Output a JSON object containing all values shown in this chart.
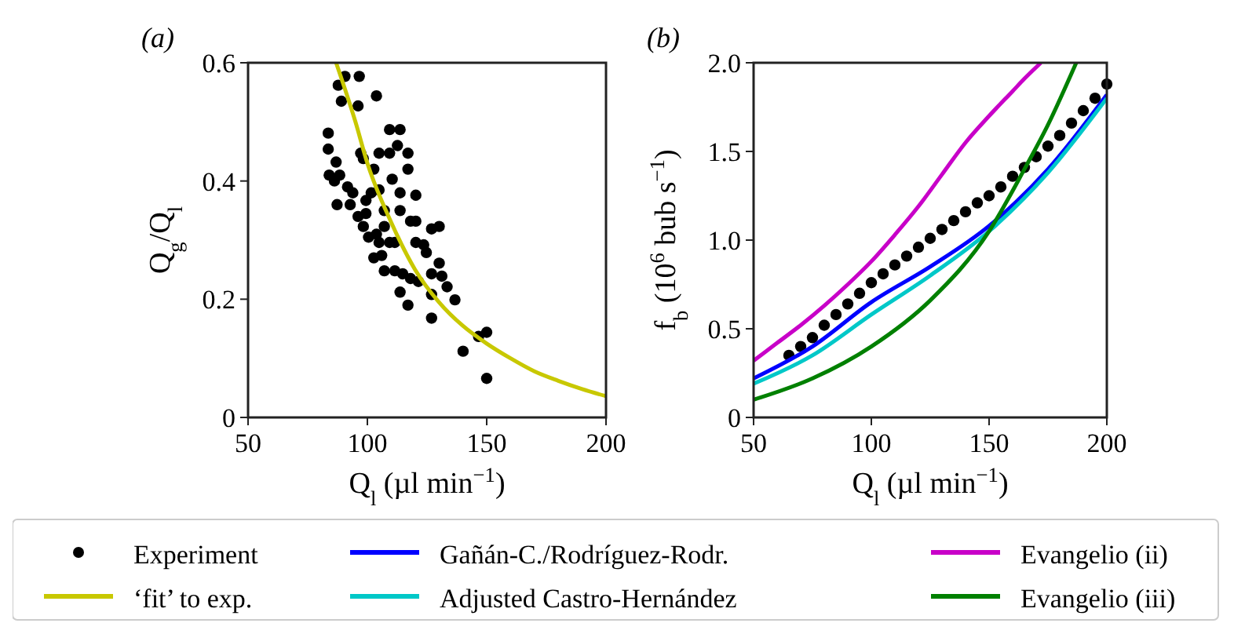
{
  "chart_data": [
    {
      "type": "scatter",
      "title": "(a)",
      "xlabel": "Q$_{l}$ (µl min$^{−1}$)",
      "ylabel": "Q$_{g}$/Q$_{l}$",
      "xlim": [
        50,
        200
      ],
      "ylim": [
        0,
        0.6
      ],
      "xticks": [
        50,
        100,
        150,
        200
      ],
      "yticks": [
        0,
        0.2,
        0.4,
        0.6
      ],
      "legend": "bottom",
      "series": [
        {
          "name": "Experiment",
          "marker": "circle",
          "color": "#000000",
          "x": [
            83.6,
            83.6,
            86.9,
            89.1,
            87.8,
            90.6,
            96.6,
            96.1,
            103.8,
            84,
            86.2,
            88.4,
            91.7,
            93.9,
            87.3,
            92.8,
            96.1,
            99.4,
            97.2,
            98.3,
            102.7,
            104.9,
            109.3,
            112.6,
            109.3,
            113.7,
            117,
            117,
            113.7,
            120.3,
            113.7,
            100.5,
            103.8,
            107.1,
            104.9,
            109.3,
            102.7,
            106,
            107.1,
            111.5,
            114.8,
            118.1,
            120.3,
            120.3,
            123.6,
            124.7,
            118.1,
            121.4,
            113.7,
            117,
            126.9,
            130.1,
            130.1,
            126.9,
            131.2,
            133.4,
            136.7,
            126.9,
            126.9,
            140.1,
            150,
            146.6,
            150,
            104.9,
            107.1,
            110.4,
            101.6,
            99.4,
            98.3,
            111.5
          ],
          "values": [
            0.481,
            0.454,
            0.432,
            0.535,
            0.562,
            0.577,
            0.577,
            0.527,
            0.544,
            0.41,
            0.4,
            0.41,
            0.39,
            0.38,
            0.36,
            0.36,
            0.34,
            0.345,
            0.447,
            0.438,
            0.42,
            0.447,
            0.447,
            0.46,
            0.487,
            0.487,
            0.447,
            0.42,
            0.38,
            0.376,
            0.35,
            0.305,
            0.31,
            0.323,
            0.296,
            0.296,
            0.27,
            0.274,
            0.248,
            0.248,
            0.243,
            0.332,
            0.332,
            0.296,
            0.292,
            0.279,
            0.235,
            0.23,
            0.212,
            0.19,
            0.319,
            0.323,
            0.261,
            0.243,
            0.239,
            0.221,
            0.199,
            0.168,
            0.208,
            0.112,
            0.144,
            0.137,
            0.066,
            0.385,
            0.35,
            0.403,
            0.38,
            0.367,
            0.323,
            0.296
          ]
        },
        {
          "name": "‘fit’ to exp.",
          "type": "line",
          "color": "#c8c800",
          "x": [
            86.9,
            95,
            100,
            110,
            120,
            130,
            140,
            150,
            160,
            170,
            180,
            190,
            200
          ],
          "values": [
            0.6,
            0.5,
            0.43,
            0.33,
            0.25,
            0.195,
            0.155,
            0.125,
            0.1,
            0.078,
            0.062,
            0.048,
            0.036
          ]
        }
      ]
    },
    {
      "type": "line",
      "title": "(b)",
      "xlabel": "Q$_{l}$ (µl min$^{−1}$)",
      "ylabel": "f$_{b}$ (10$^{6}$ bub s$^{−1}$)",
      "xlim": [
        50,
        200
      ],
      "ylim": [
        0,
        2
      ],
      "xticks": [
        50,
        100,
        150,
        200
      ],
      "yticks": [
        0,
        0.5,
        {
          "value": 1,
          "label": "1.0"
        },
        1.5,
        {
          "value": 2,
          "label": "2.0"
        }
      ],
      "legend": "bottom",
      "series": [
        {
          "type": "scatter",
          "color": "#000000",
          "x": [
            65,
            70,
            75,
            80,
            85,
            90,
            95,
            100,
            105,
            110,
            115,
            120,
            125,
            130,
            135,
            140,
            145,
            150,
            155,
            160,
            165,
            170,
            175,
            180,
            185,
            190,
            195,
            200
          ],
          "values": [
            0.35,
            0.4,
            0.45,
            0.52,
            0.58,
            0.64,
            0.7,
            0.76,
            0.81,
            0.86,
            0.91,
            0.96,
            1.01,
            1.06,
            1.11,
            1.16,
            1.21,
            1.25,
            1.3,
            1.36,
            1.41,
            1.47,
            1.53,
            1.59,
            1.66,
            1.73,
            1.8,
            1.88
          ]
        },
        {
          "name": "Gañán-C./Rodríguez-Rodr.",
          "color": "#0000ff",
          "x": [
            50,
            75,
            100,
            125,
            150,
            175,
            200
          ],
          "values": [
            0.22,
            0.4,
            0.65,
            0.85,
            1.08,
            1.4,
            1.82
          ]
        },
        {
          "name": "Adjusted Castro-Hernández",
          "color": "#00c8c8",
          "x": [
            50,
            75,
            100,
            125,
            150,
            175,
            200
          ],
          "values": [
            0.19,
            0.35,
            0.58,
            0.8,
            1.05,
            1.38,
            1.8
          ]
        },
        {
          "name": "Evangelio (ii)",
          "color": "#c800c8",
          "x": [
            50,
            60,
            70,
            80,
            90,
            100,
            110,
            120,
            130,
            140,
            150,
            160,
            165,
            172
          ],
          "values": [
            0.32,
            0.42,
            0.52,
            0.63,
            0.75,
            0.88,
            1.03,
            1.19,
            1.37,
            1.55,
            1.7,
            1.84,
            1.91,
            2.0
          ]
        },
        {
          "name": "Evangelio (iii)",
          "color": "#008000",
          "x": [
            50,
            75,
            100,
            125,
            150,
            165,
            175,
            187
          ],
          "values": [
            0.1,
            0.22,
            0.4,
            0.66,
            1.05,
            1.4,
            1.65,
            2.0
          ]
        }
      ]
    }
  ]
}
